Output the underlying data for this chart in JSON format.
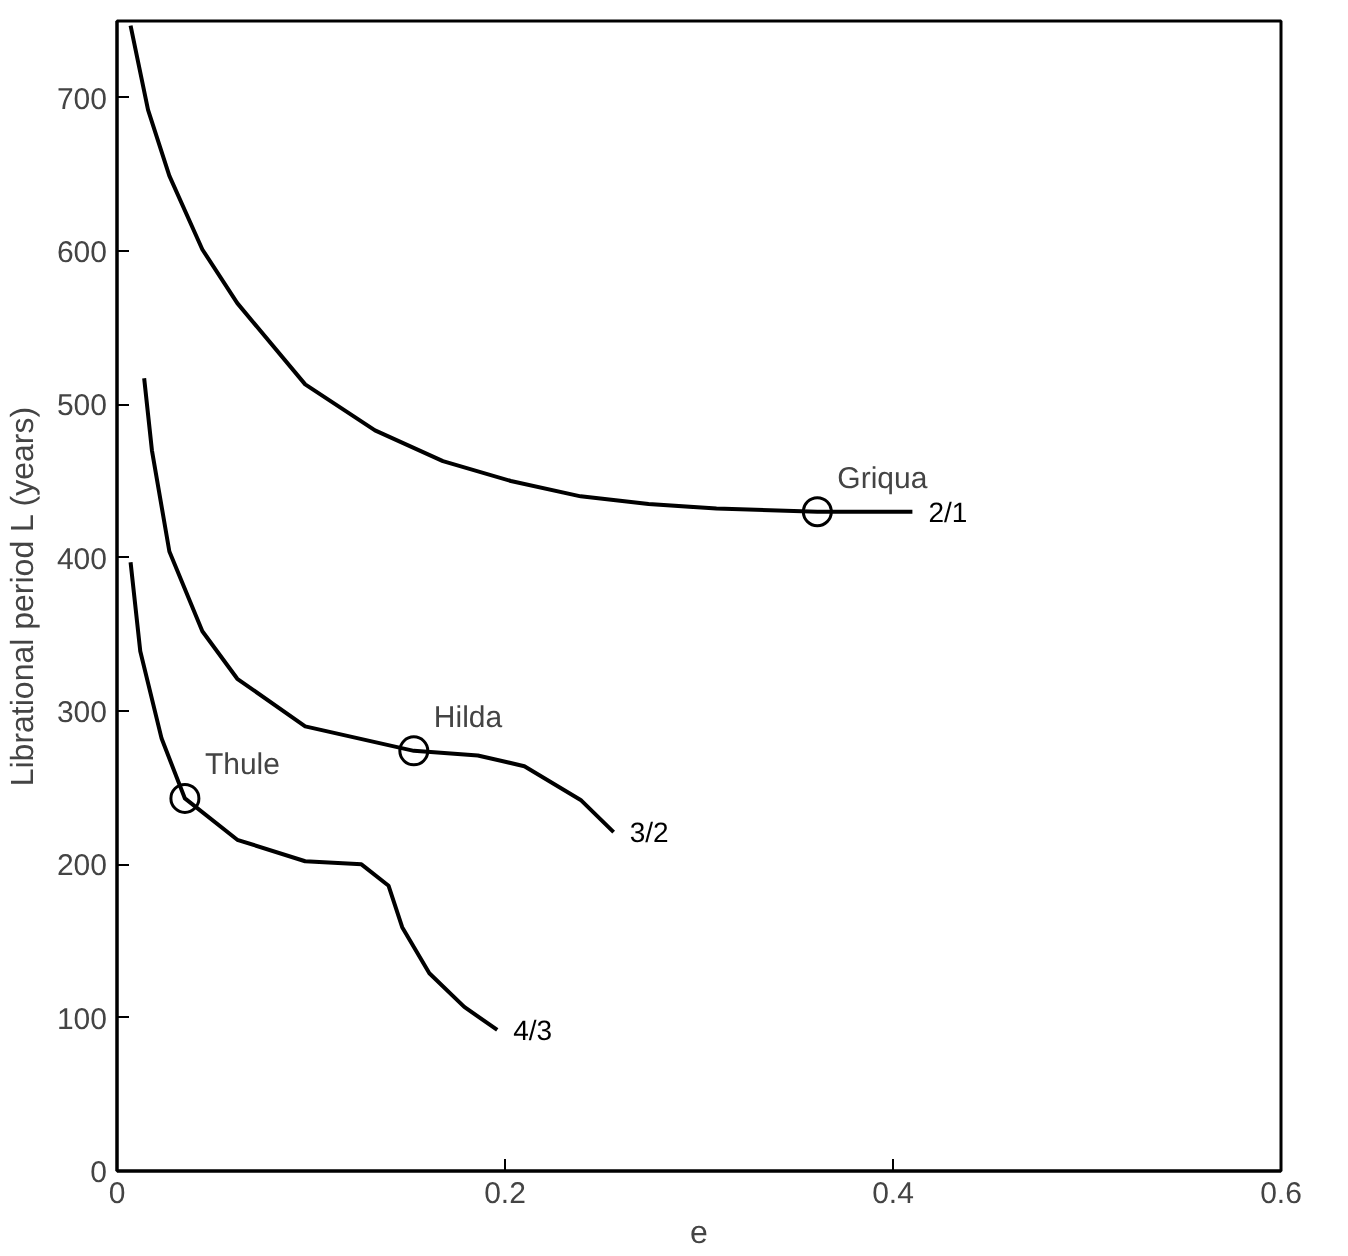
{
  "chart_data": {
    "type": "line",
    "xlabel": "e",
    "ylabel": "Librational period L (years)",
    "xlim": [
      0,
      0.6
    ],
    "ylim": [
      0,
      750
    ],
    "xticks": [
      0,
      0.2,
      0.4,
      0.6
    ],
    "yticks": [
      0,
      100,
      200,
      300,
      400,
      500,
      600,
      700
    ],
    "grid": false,
    "marker": "none",
    "line_style": "solid",
    "series": [
      {
        "name": "2/1",
        "color": "#000000",
        "x": [
          0.007,
          0.016,
          0.027,
          0.044,
          0.062,
          0.097,
          0.133,
          0.168,
          0.203,
          0.239,
          0.274,
          0.309,
          0.361,
          0.41
        ],
        "values": [
          747,
          692,
          649,
          601,
          566,
          513,
          483,
          463,
          450,
          440,
          435,
          432,
          430,
          430
        ]
      },
      {
        "name": "3/2",
        "color": "#000000",
        "x": [
          0.014,
          0.018,
          0.027,
          0.044,
          0.062,
          0.097,
          0.153,
          0.186,
          0.21,
          0.239,
          0.256
        ],
        "values": [
          517,
          470,
          404,
          352,
          321,
          290,
          274,
          271,
          264,
          242,
          221
        ]
      },
      {
        "name": "4/3",
        "color": "#000000",
        "x": [
          0.007,
          0.012,
          0.023,
          0.035,
          0.062,
          0.097,
          0.126,
          0.14,
          0.147,
          0.161,
          0.179,
          0.196
        ],
        "values": [
          397,
          339,
          282,
          243,
          216,
          202,
          200,
          186,
          159,
          129,
          107,
          92
        ]
      }
    ],
    "annotations": [
      {
        "text": "Griqua",
        "x": 0.361,
        "y": 430
      },
      {
        "text": "Hilda",
        "x": 0.153,
        "y": 274
      },
      {
        "text": "Thule",
        "x": 0.035,
        "y": 243
      }
    ]
  }
}
